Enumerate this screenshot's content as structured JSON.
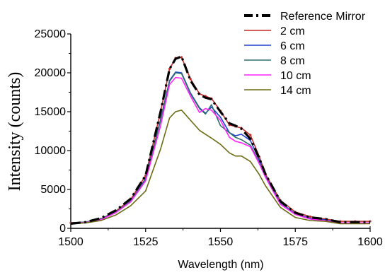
{
  "chart_data": {
    "type": "line",
    "title": "",
    "xlabel": "Wavelength (nm)",
    "ylabel": "Intensity (counts)",
    "xlim": [
      1500,
      1600
    ],
    "ylim": [
      0,
      25000
    ],
    "x_ticks": [
      1500,
      1525,
      1550,
      1575,
      1600
    ],
    "x_tick_labels": [
      "1500",
      "1525",
      "1550",
      "1575",
      "1600"
    ],
    "y_ticks": [
      0,
      5000,
      10000,
      15000,
      20000,
      25000
    ],
    "y_tick_labels": [
      "0",
      "5000",
      "10000",
      "15000",
      "20000",
      "25000"
    ],
    "grid": false,
    "legend_position": "top-right",
    "x": [
      1500,
      1505,
      1510,
      1515,
      1520,
      1525,
      1530,
      1533,
      1535,
      1537,
      1540,
      1543,
      1545,
      1547,
      1550,
      1553,
      1555,
      1557,
      1560,
      1563,
      1565,
      1570,
      1575,
      1580,
      1585,
      1590,
      1595,
      1600
    ],
    "series": [
      {
        "name": "Reference Mirror",
        "color": "#000000",
        "dash": "dash-dot",
        "values": [
          600,
          800,
          1300,
          2300,
          3800,
          6800,
          15000,
          20500,
          21800,
          22100,
          19000,
          17200,
          16800,
          16600,
          15000,
          13500,
          13200,
          12800,
          11500,
          9000,
          7000,
          3500,
          2000,
          1400,
          1200,
          800,
          800,
          800
        ]
      },
      {
        "name": "2 cm",
        "color": "#c62828",
        "dash": "solid",
        "markers": true,
        "values": [
          700,
          800,
          1200,
          2200,
          3700,
          6800,
          15000,
          20500,
          21900,
          22000,
          19200,
          17300,
          17000,
          16700,
          15100,
          13300,
          13100,
          12900,
          12000,
          9200,
          7000,
          3600,
          2100,
          1500,
          1200,
          900,
          900,
          900
        ]
      },
      {
        "name": "6 cm",
        "color": "#1f3fcf",
        "dash": "solid",
        "values": [
          700,
          800,
          1200,
          2100,
          3500,
          6400,
          14000,
          19000,
          20100,
          20000,
          17400,
          15500,
          14800,
          15600,
          14300,
          12300,
          11900,
          12100,
          11300,
          8800,
          6800,
          3300,
          1900,
          1300,
          1100,
          700,
          700,
          700
        ]
      },
      {
        "name": "8 cm",
        "color": "#2f6f6f",
        "dash": "solid",
        "values": [
          700,
          800,
          1200,
          2100,
          3500,
          6300,
          13900,
          18900,
          20000,
          19900,
          17300,
          15400,
          14700,
          15900,
          13200,
          12300,
          11700,
          11400,
          10700,
          8500,
          6700,
          3200,
          1800,
          1200,
          1000,
          700,
          700,
          700
        ]
      },
      {
        "name": "10 cm",
        "color": "#ff22ff",
        "dash": "solid",
        "values": [
          650,
          750,
          1100,
          2000,
          3400,
          6100,
          13200,
          18500,
          19400,
          19300,
          17000,
          14900,
          15400,
          15200,
          13900,
          11700,
          11200,
          11000,
          10500,
          8300,
          6600,
          3100,
          1800,
          1200,
          1000,
          700,
          700,
          700
        ]
      },
      {
        "name": "14 cm",
        "color": "#6b6b14",
        "dash": "solid",
        "values": [
          600,
          700,
          1000,
          1700,
          2900,
          4800,
          10200,
          14200,
          15000,
          15200,
          13900,
          12600,
          12100,
          11600,
          10800,
          9700,
          9300,
          9300,
          8600,
          6900,
          5500,
          2700,
          1400,
          1000,
          900,
          600,
          600,
          600
        ]
      }
    ]
  }
}
